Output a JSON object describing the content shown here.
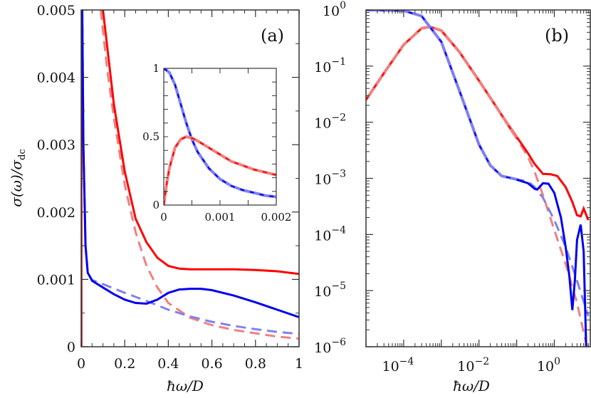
{
  "figure": {
    "panel_a": {
      "tag": "(a)",
      "xlabel": "ħω/D",
      "ylabel": "σ(ω)/σ_dc",
      "xticks": [
        "0",
        "0.2",
        "0.4",
        "0.6",
        "0.8",
        "1"
      ],
      "yticks": [
        "0",
        "0.001",
        "0.002",
        "0.003",
        "0.004",
        "0.005"
      ],
      "inset": {
        "xticks": [
          "0",
          "0.001",
          "0.002"
        ],
        "yticks": [
          "0",
          "0.5",
          "1"
        ]
      }
    },
    "panel_b": {
      "tag": "(b)",
      "xlabel": "ħω/D",
      "xticks": [
        "10^-4",
        "10^-2",
        "10^0"
      ],
      "yticks": [
        "10^0",
        "10^-1",
        "10^-2",
        "10^-3",
        "10^-4",
        "10^-5",
        "10^-6"
      ]
    },
    "colors": {
      "red_solid": "#ff0000",
      "red_dashed_light": "#f08080",
      "blue_solid": "#0000ee",
      "blue_dashed_light": "#8080f0"
    }
  },
  "chart_data": [
    {
      "type": "line",
      "title": "(a)",
      "xlabel": "ħω/D",
      "ylabel": "σ(ω)/σ_dc",
      "xlim": [
        0,
        1
      ],
      "ylim": [
        0,
        0.005
      ],
      "grid": false,
      "series": [
        {
          "name": "red solid",
          "style": "solid",
          "color": "#ff0000",
          "x": [
            0.1,
            0.15,
            0.2,
            0.25,
            0.3,
            0.35,
            0.4,
            0.45,
            0.5,
            0.6,
            0.7,
            0.8,
            0.9,
            1.0
          ],
          "y": [
            0.005,
            0.0036,
            0.0026,
            0.0019,
            0.00155,
            0.00132,
            0.0012,
            0.00116,
            0.00115,
            0.00115,
            0.00115,
            0.00114,
            0.00112,
            0.00108
          ]
        },
        {
          "name": "red dashed",
          "style": "dashed",
          "color": "#f08080",
          "x": [
            0.09,
            0.12,
            0.15,
            0.2,
            0.25,
            0.3,
            0.35,
            0.4,
            0.5,
            0.6,
            0.7,
            0.8,
            0.9,
            1.0
          ],
          "y": [
            0.005,
            0.0041,
            0.0034,
            0.0024,
            0.0017,
            0.0012,
            0.00088,
            0.00065,
            0.00043,
            0.00032,
            0.00025,
            0.0002,
            0.00015,
            0.00012
          ]
        },
        {
          "name": "blue solid",
          "style": "solid",
          "color": "#0000ee",
          "x": [
            0.005,
            0.01,
            0.02,
            0.03,
            0.05,
            0.1,
            0.15,
            0.2,
            0.25,
            0.3,
            0.35,
            0.4,
            0.45,
            0.5,
            0.55,
            0.6,
            0.7,
            0.8,
            0.9,
            1.0
          ],
          "y": [
            0.005,
            0.003,
            0.0015,
            0.0011,
            0.00098,
            0.00088,
            0.00078,
            0.0007,
            0.00065,
            0.00064,
            0.0007,
            0.0008,
            0.00085,
            0.00086,
            0.00086,
            0.00084,
            0.00076,
            0.00066,
            0.00055,
            0.00044
          ]
        },
        {
          "name": "blue dashed",
          "style": "dashed",
          "color": "#8080f0",
          "x": [
            0.005,
            0.01,
            0.02,
            0.03,
            0.05,
            0.1,
            0.2,
            0.3,
            0.4,
            0.5,
            0.6,
            0.7,
            0.8,
            0.9,
            1.0
          ],
          "y": [
            0.005,
            0.003,
            0.0015,
            0.0011,
            0.00099,
            0.00093,
            0.0008,
            0.00068,
            0.00055,
            0.00045,
            0.00037,
            0.00031,
            0.00026,
            0.00022,
            0.00019
          ]
        }
      ],
      "inset": {
        "xlim": [
          0,
          0.002
        ],
        "ylim": [
          0,
          1
        ],
        "series": [
          {
            "name": "blue (solid+dashed overlap)",
            "x": [
              0,
              0.0001,
              0.0002,
              0.0003,
              0.0004,
              0.0005,
              0.0006,
              0.0008,
              0.001,
              0.0012,
              0.0014,
              0.0016,
              0.0018,
              0.002
            ],
            "y": [
              1.0,
              0.97,
              0.88,
              0.74,
              0.6,
              0.48,
              0.39,
              0.27,
              0.19,
              0.14,
              0.11,
              0.09,
              0.07,
              0.06
            ]
          },
          {
            "name": "red (solid+dashed overlap)",
            "x": [
              0,
              5e-05,
              0.0001,
              0.0002,
              0.0003,
              0.0004,
              0.0005,
              0.0006,
              0.0008,
              0.001,
              0.0012,
              0.0014,
              0.0016,
              0.0018,
              0.002
            ],
            "y": [
              0.0,
              0.15,
              0.27,
              0.42,
              0.48,
              0.5,
              0.49,
              0.47,
              0.42,
              0.37,
              0.32,
              0.29,
              0.26,
              0.24,
              0.22
            ]
          }
        ]
      }
    },
    {
      "type": "line",
      "title": "(b)",
      "xlabel": "ħω/D",
      "ylabel": "",
      "xscale": "log",
      "yscale": "log",
      "xlim": [
        1e-05,
        9
      ],
      "ylim": [
        1e-06,
        1
      ],
      "grid": false,
      "series": [
        {
          "name": "red solid",
          "style": "solid",
          "color": "#ff0000",
          "x": [
            1e-05,
            3e-05,
            0.0001,
            0.0003,
            0.0005,
            0.001,
            0.003,
            0.01,
            0.03,
            0.1,
            0.2,
            0.3,
            0.5,
            0.8,
            1.2,
            2,
            3,
            4,
            5,
            6,
            8
          ],
          "y": [
            0.025,
            0.075,
            0.24,
            0.47,
            0.5,
            0.43,
            0.18,
            0.055,
            0.018,
            0.0055,
            0.0028,
            0.0018,
            0.0012,
            0.00118,
            0.0011,
            0.0007,
            0.00038,
            0.00022,
            0.00021,
            0.00029,
            0.00018
          ]
        },
        {
          "name": "red dashed",
          "style": "dashed",
          "color": "#f08080",
          "x": [
            1e-05,
            3e-05,
            0.0001,
            0.0003,
            0.0005,
            0.001,
            0.003,
            0.01,
            0.03,
            0.1,
            0.2,
            0.3,
            0.5,
            1,
            2,
            4,
            6,
            8
          ],
          "y": [
            0.025,
            0.075,
            0.24,
            0.47,
            0.5,
            0.43,
            0.18,
            0.055,
            0.018,
            0.0052,
            0.0024,
            0.0013,
            0.0005,
            0.00012,
            3e-05,
            6e-06,
            1.8e-06,
            8e-07
          ]
        },
        {
          "name": "blue solid",
          "style": "solid",
          "color": "#0000ee",
          "x": [
            1e-05,
            0.0001,
            0.0003,
            0.001,
            0.003,
            0.01,
            0.02,
            0.04,
            0.1,
            0.2,
            0.3,
            0.35,
            0.5,
            0.7,
            1,
            1.5,
            2,
            2.5,
            3,
            3.5,
            4,
            5,
            6,
            7
          ],
          "y": [
            1,
            0.97,
            0.78,
            0.27,
            0.037,
            0.004,
            0.0017,
            0.0011,
            0.00095,
            0.00082,
            0.00065,
            0.00063,
            0.00082,
            0.0008,
            0.00055,
            0.0002,
            6e-05,
            1.8e-05,
            4.5e-06,
            1.5e-05,
            8e-05,
            0.00015,
            5e-05,
            1e-06
          ]
        },
        {
          "name": "blue dashed",
          "style": "dashed",
          "color": "#8080f0",
          "x": [
            1e-05,
            0.0001,
            0.0003,
            0.001,
            0.003,
            0.01,
            0.02,
            0.04,
            0.1,
            0.2,
            0.3,
            0.5,
            1,
            2,
            4,
            8
          ],
          "y": [
            1,
            0.97,
            0.78,
            0.27,
            0.037,
            0.004,
            0.0017,
            0.0011,
            0.00096,
            0.00088,
            0.0007,
            0.00045,
            0.00018,
            6e-05,
            1.5e-05,
            3.5e-06
          ]
        }
      ]
    }
  ]
}
